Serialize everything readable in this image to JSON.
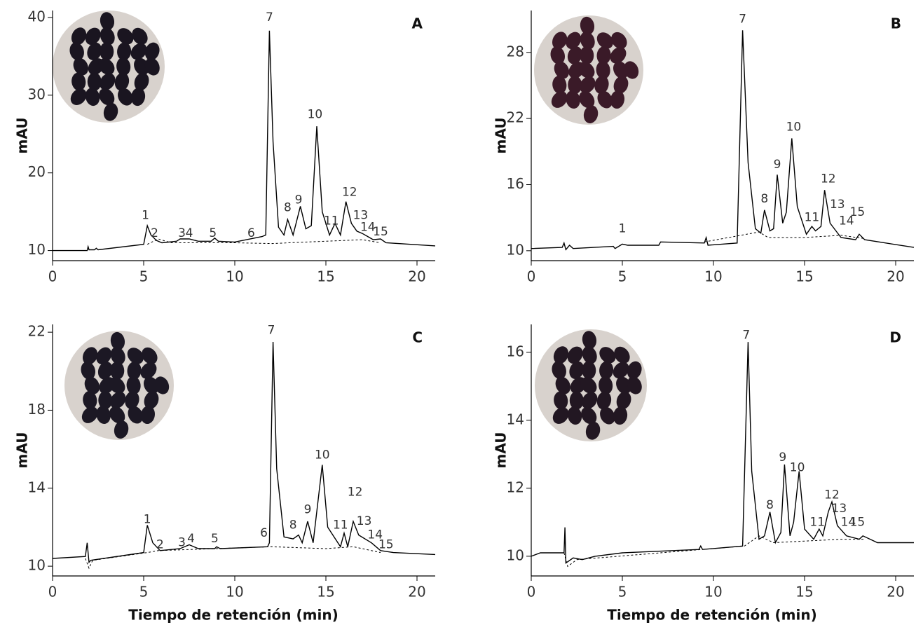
{
  "chart_data": [
    {
      "type": "line",
      "panel": "A",
      "ylabel": "mAU",
      "xlim": [
        0,
        21
      ],
      "xticks": [
        0,
        5,
        10,
        15,
        20
      ],
      "ylim": [
        8.7,
        40.9
      ],
      "yticks": [
        10,
        20,
        30,
        40
      ],
      "series": [
        {
          "color": "#000000",
          "style": "solid",
          "x": [
            0,
            1.9,
            1.95,
            2.0,
            2.3,
            2.4,
            2.5,
            5,
            5.2,
            5.4,
            5.7,
            6,
            6.8,
            7.0,
            7.5,
            8,
            8.7,
            8.9,
            9.1,
            10,
            11.5,
            11.7,
            11.9,
            12.1,
            12.4,
            12.7,
            12.9,
            13.2,
            13.6,
            13.9,
            14.2,
            14.5,
            14.8,
            15.2,
            15.5,
            15.8,
            16.1,
            16.4,
            16.7,
            17,
            17.3,
            17.6,
            18,
            18.3,
            21
          ],
          "values": [
            10,
            10,
            10.5,
            10.1,
            10.1,
            10.3,
            10.1,
            10.8,
            13.2,
            12,
            11.3,
            11,
            11.2,
            11.5,
            11.5,
            11.2,
            11.2,
            11.6,
            11.2,
            11.1,
            11.8,
            12,
            38.3,
            24,
            13,
            12,
            14,
            12,
            15.7,
            12.8,
            13.2,
            26,
            15,
            12,
            13.5,
            12,
            16.3,
            13.5,
            12.5,
            12.2,
            11.8,
            11.4,
            11.5,
            11,
            10.6
          ]
        },
        {
          "color": "#000000",
          "style": "dashed",
          "x": [
            5.2,
            5.8,
            6.5,
            10,
            12,
            15,
            17,
            18
          ],
          "values": [
            10.8,
            11.5,
            11,
            11,
            10.9,
            11.2,
            11.4,
            11
          ]
        }
      ],
      "annotations": [
        {
          "text": "1",
          "x": 5.1,
          "y": 14.5
        },
        {
          "text": "2",
          "x": 5.6,
          "y": 12.2
        },
        {
          "text": "3",
          "x": 7.1,
          "y": 12.2
        },
        {
          "text": "4",
          "x": 7.5,
          "y": 12.2
        },
        {
          "text": "5",
          "x": 8.8,
          "y": 12.2
        },
        {
          "text": "6",
          "x": 10.9,
          "y": 12.2
        },
        {
          "text": "7",
          "x": 11.9,
          "y": 40
        },
        {
          "text": "8",
          "x": 12.9,
          "y": 15.5
        },
        {
          "text": "9",
          "x": 13.5,
          "y": 16.5
        },
        {
          "text": "10",
          "x": 14.4,
          "y": 27.5
        },
        {
          "text": "11",
          "x": 15.3,
          "y": 13.8
        },
        {
          "text": "12",
          "x": 16.3,
          "y": 17.5
        },
        {
          "text": "13",
          "x": 16.9,
          "y": 14.5
        },
        {
          "text": "14",
          "x": 17.3,
          "y": 13
        },
        {
          "text": "15",
          "x": 18,
          "y": 12.4
        }
      ]
    },
    {
      "type": "line",
      "panel": "B",
      "ylabel": "mAU",
      "xlim": [
        0,
        21
      ],
      "xticks": [
        0,
        5,
        10,
        15,
        20
      ],
      "ylim": [
        9.1,
        31.8
      ],
      "yticks": [
        10,
        16,
        22,
        28
      ],
      "series": [
        {
          "color": "#000000",
          "style": "solid",
          "x": [
            0,
            1.7,
            1.8,
            1.9,
            2.1,
            2.3,
            4.5,
            4.6,
            5,
            5.3,
            7,
            7.1,
            9.5,
            9.6,
            9.7,
            11.3,
            11.6,
            11.9,
            12.3,
            12.6,
            12.8,
            13.1,
            13.3,
            13.5,
            13.8,
            14.0,
            14.3,
            14.6,
            15.1,
            15.4,
            15.6,
            15.9,
            16.1,
            16.4,
            17,
            17.8,
            18,
            18.3,
            21
          ],
          "values": [
            10.2,
            10.3,
            10.7,
            10.1,
            10.5,
            10.2,
            10.4,
            10.2,
            10.6,
            10.5,
            10.5,
            10.8,
            10.7,
            11.2,
            10.5,
            10.7,
            30,
            18,
            12,
            11.6,
            13.7,
            11.8,
            12,
            16.9,
            12.5,
            13.5,
            20.2,
            14,
            11.5,
            12.2,
            11.8,
            12.2,
            15.5,
            12.5,
            11.2,
            11,
            11.5,
            11,
            10.3
          ]
        },
        {
          "color": "#000000",
          "style": "dashed",
          "x": [
            9.5,
            12.5,
            13,
            15,
            17,
            18.3
          ],
          "values": [
            10.8,
            11.7,
            11.2,
            11.2,
            11.4,
            11.1
          ]
        }
      ],
      "annotations": [
        {
          "text": "1",
          "x": 5,
          "y": 12
        },
        {
          "text": "7",
          "x": 11.6,
          "y": 31
        },
        {
          "text": "8",
          "x": 12.8,
          "y": 14.7
        },
        {
          "text": "9",
          "x": 13.5,
          "y": 17.8
        },
        {
          "text": "10",
          "x": 14.4,
          "y": 21.2
        },
        {
          "text": "11",
          "x": 15.4,
          "y": 13
        },
        {
          "text": "12",
          "x": 16.3,
          "y": 16.5
        },
        {
          "text": "13",
          "x": 16.8,
          "y": 14.2
        },
        {
          "text": "14",
          "x": 17.3,
          "y": 12.7
        },
        {
          "text": "15",
          "x": 17.9,
          "y": 13.5
        }
      ]
    },
    {
      "type": "line",
      "panel": "C",
      "ylabel": "mAU",
      "xlabel": "Tiempo de retención (min)",
      "xlim": [
        0,
        21
      ],
      "xticks": [
        0,
        5,
        10,
        15,
        20
      ],
      "ylim": [
        9.5,
        22.4
      ],
      "yticks": [
        10,
        14,
        18,
        22
      ],
      "series": [
        {
          "color": "#000000",
          "style": "solid",
          "x": [
            0,
            1.8,
            1.9,
            2.0,
            2.1,
            5,
            5.2,
            5.5,
            5.9,
            7,
            7.5,
            8,
            8.9,
            9,
            9.2,
            11.8,
            11.9,
            12.1,
            12.3,
            12.7,
            13.2,
            13.5,
            13.7,
            14,
            14.3,
            14.8,
            15.1,
            15.8,
            16,
            16.2,
            16.5,
            16.8,
            17.5,
            18,
            18.7,
            21
          ],
          "values": [
            10.4,
            10.5,
            11.2,
            10.2,
            10.3,
            10.7,
            12.1,
            11.2,
            10.8,
            10.9,
            11.1,
            10.9,
            10.9,
            11,
            10.9,
            11,
            11.2,
            21.5,
            15,
            11.5,
            11.4,
            11.6,
            11.2,
            12.3,
            11.2,
            15.2,
            12,
            11,
            11.7,
            11,
            12.3,
            11.6,
            11.2,
            10.8,
            10.7,
            10.6
          ]
        },
        {
          "color": "#000000",
          "style": "dashed",
          "x": [
            1.8,
            2.0,
            2.2,
            5.2,
            5.8,
            12,
            15,
            16.5,
            18
          ],
          "values": [
            10.4,
            9.9,
            10.3,
            10.7,
            10.8,
            11,
            10.9,
            11,
            10.7
          ]
        }
      ],
      "annotations": [
        {
          "text": "1",
          "x": 5.2,
          "y": 12.4
        },
        {
          "text": "2",
          "x": 5.9,
          "y": 11.1
        },
        {
          "text": "3",
          "x": 7.1,
          "y": 11.2
        },
        {
          "text": "4",
          "x": 7.6,
          "y": 11.4
        },
        {
          "text": "5",
          "x": 8.9,
          "y": 11.4
        },
        {
          "text": "6",
          "x": 11.6,
          "y": 11.7
        },
        {
          "text": "7",
          "x": 12.0,
          "y": 22.1
        },
        {
          "text": "8",
          "x": 13.2,
          "y": 12.1
        },
        {
          "text": "9",
          "x": 14,
          "y": 12.9
        },
        {
          "text": "10",
          "x": 14.8,
          "y": 15.7
        },
        {
          "text": "11",
          "x": 15.8,
          "y": 12.1
        },
        {
          "text": "12",
          "x": 16.6,
          "y": 13.8
        },
        {
          "text": "13",
          "x": 17.1,
          "y": 12.3
        },
        {
          "text": "14",
          "x": 17.7,
          "y": 11.6
        },
        {
          "text": "15",
          "x": 18.3,
          "y": 11.1
        }
      ]
    },
    {
      "type": "line",
      "panel": "D",
      "ylabel": "mAU",
      "xlabel": "Tiempo de retención (min)",
      "xlim": [
        0,
        21
      ],
      "xticks": [
        0,
        5,
        10,
        15,
        20
      ],
      "ylim": [
        9.42,
        16.82
      ],
      "yticks": [
        10,
        12,
        14,
        16
      ],
      "series": [
        {
          "color": "#000000",
          "style": "solid",
          "x": [
            0,
            0.5,
            1.8,
            1.85,
            1.9,
            2.3,
            2.8,
            3.5,
            5,
            9.2,
            9.3,
            9.4,
            11.6,
            11.9,
            12.1,
            12.5,
            12.8,
            13.1,
            13.4,
            13.7,
            13.9,
            14.2,
            14.4,
            14.7,
            15,
            15.5,
            15.8,
            16.0,
            16.3,
            16.5,
            16.8,
            17.3,
            18,
            18.2,
            18.6,
            19,
            21
          ],
          "values": [
            10,
            10.1,
            10.1,
            10.85,
            9.8,
            9.95,
            9.9,
            10,
            10.1,
            10.2,
            10.3,
            10.2,
            10.3,
            16.3,
            12.5,
            10.5,
            10.6,
            11.3,
            10.4,
            10.7,
            12.7,
            10.6,
            11,
            12.5,
            10.8,
            10.5,
            10.8,
            10.6,
            11.3,
            11.6,
            10.9,
            10.6,
            10.5,
            10.6,
            10.5,
            10.4,
            10.4
          ]
        },
        {
          "color": "#000000",
          "style": "dashed",
          "x": [
            1.8,
            2.0,
            2.5,
            11.7,
            12.5,
            13.3,
            17,
            18.3
          ],
          "values": [
            10.1,
            9.7,
            9.9,
            10.3,
            10.6,
            10.4,
            10.5,
            10.5
          ]
        }
      ],
      "annotations": [
        {
          "text": "7",
          "x": 11.8,
          "y": 16.5
        },
        {
          "text": "8",
          "x": 13.1,
          "y": 11.5
        },
        {
          "text": "9",
          "x": 13.8,
          "y": 12.9
        },
        {
          "text": "10",
          "x": 14.6,
          "y": 12.6
        },
        {
          "text": "11",
          "x": 15.7,
          "y": 11
        },
        {
          "text": "12",
          "x": 16.5,
          "y": 11.8
        },
        {
          "text": "13",
          "x": 16.9,
          "y": 11.4
        },
        {
          "text": "14",
          "x": 17.4,
          "y": 11.0
        },
        {
          "text": "15",
          "x": 17.9,
          "y": 11.0
        }
      ]
    }
  ]
}
